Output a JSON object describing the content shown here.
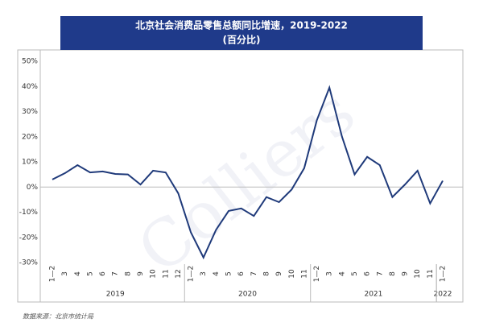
{
  "chart_data": {
    "type": "line",
    "title": "北京社会消费品零售总额同比增速，2019-2022",
    "subtitle": "(百分比)",
    "source": "数据来源：北京市统计局",
    "watermark": "Colliers",
    "groups": [
      {
        "label": "2019",
        "categories": [
          "1—2",
          "3",
          "4",
          "5",
          "6",
          "7",
          "8",
          "9",
          "10",
          "11",
          "12"
        ]
      },
      {
        "label": "2020",
        "categories": [
          "1—2",
          "3",
          "4",
          "5",
          "6",
          "7",
          "8",
          "9",
          "10",
          "11"
        ]
      },
      {
        "label": "2021",
        "categories": [
          "1—2",
          "3",
          "4",
          "5",
          "6",
          "7",
          "8",
          "9",
          "10",
          "11"
        ]
      },
      {
        "label": "2022",
        "categories": [
          "1—2"
        ]
      }
    ],
    "values": [
      3,
      5.5,
      8.7,
      5.8,
      6.2,
      5.2,
      5,
      1,
      6.5,
      5.8,
      -2.5,
      -18,
      -28,
      -17,
      -9.5,
      -8.5,
      -11.5,
      -4,
      -6,
      -1,
      7.5,
      26.5,
      39.5,
      20,
      5,
      12,
      8.7,
      -4,
      1,
      6.5,
      -6.5,
      2.5
    ],
    "color": "#1f3a7a",
    "ylim": [
      -30,
      50
    ],
    "yticks": [
      {
        "value": -30,
        "label": "-30%"
      },
      {
        "value": -20,
        "label": "-20%"
      },
      {
        "value": -10,
        "label": "-10%"
      },
      {
        "value": 0,
        "label": "0%"
      },
      {
        "value": 10,
        "label": "10%"
      },
      {
        "value": 20,
        "label": "20%"
      },
      {
        "value": 30,
        "label": "30%"
      },
      {
        "value": 40,
        "label": "40%"
      },
      {
        "value": 50,
        "label": "50%"
      }
    ],
    "header_color": "#1f3a8a"
  }
}
